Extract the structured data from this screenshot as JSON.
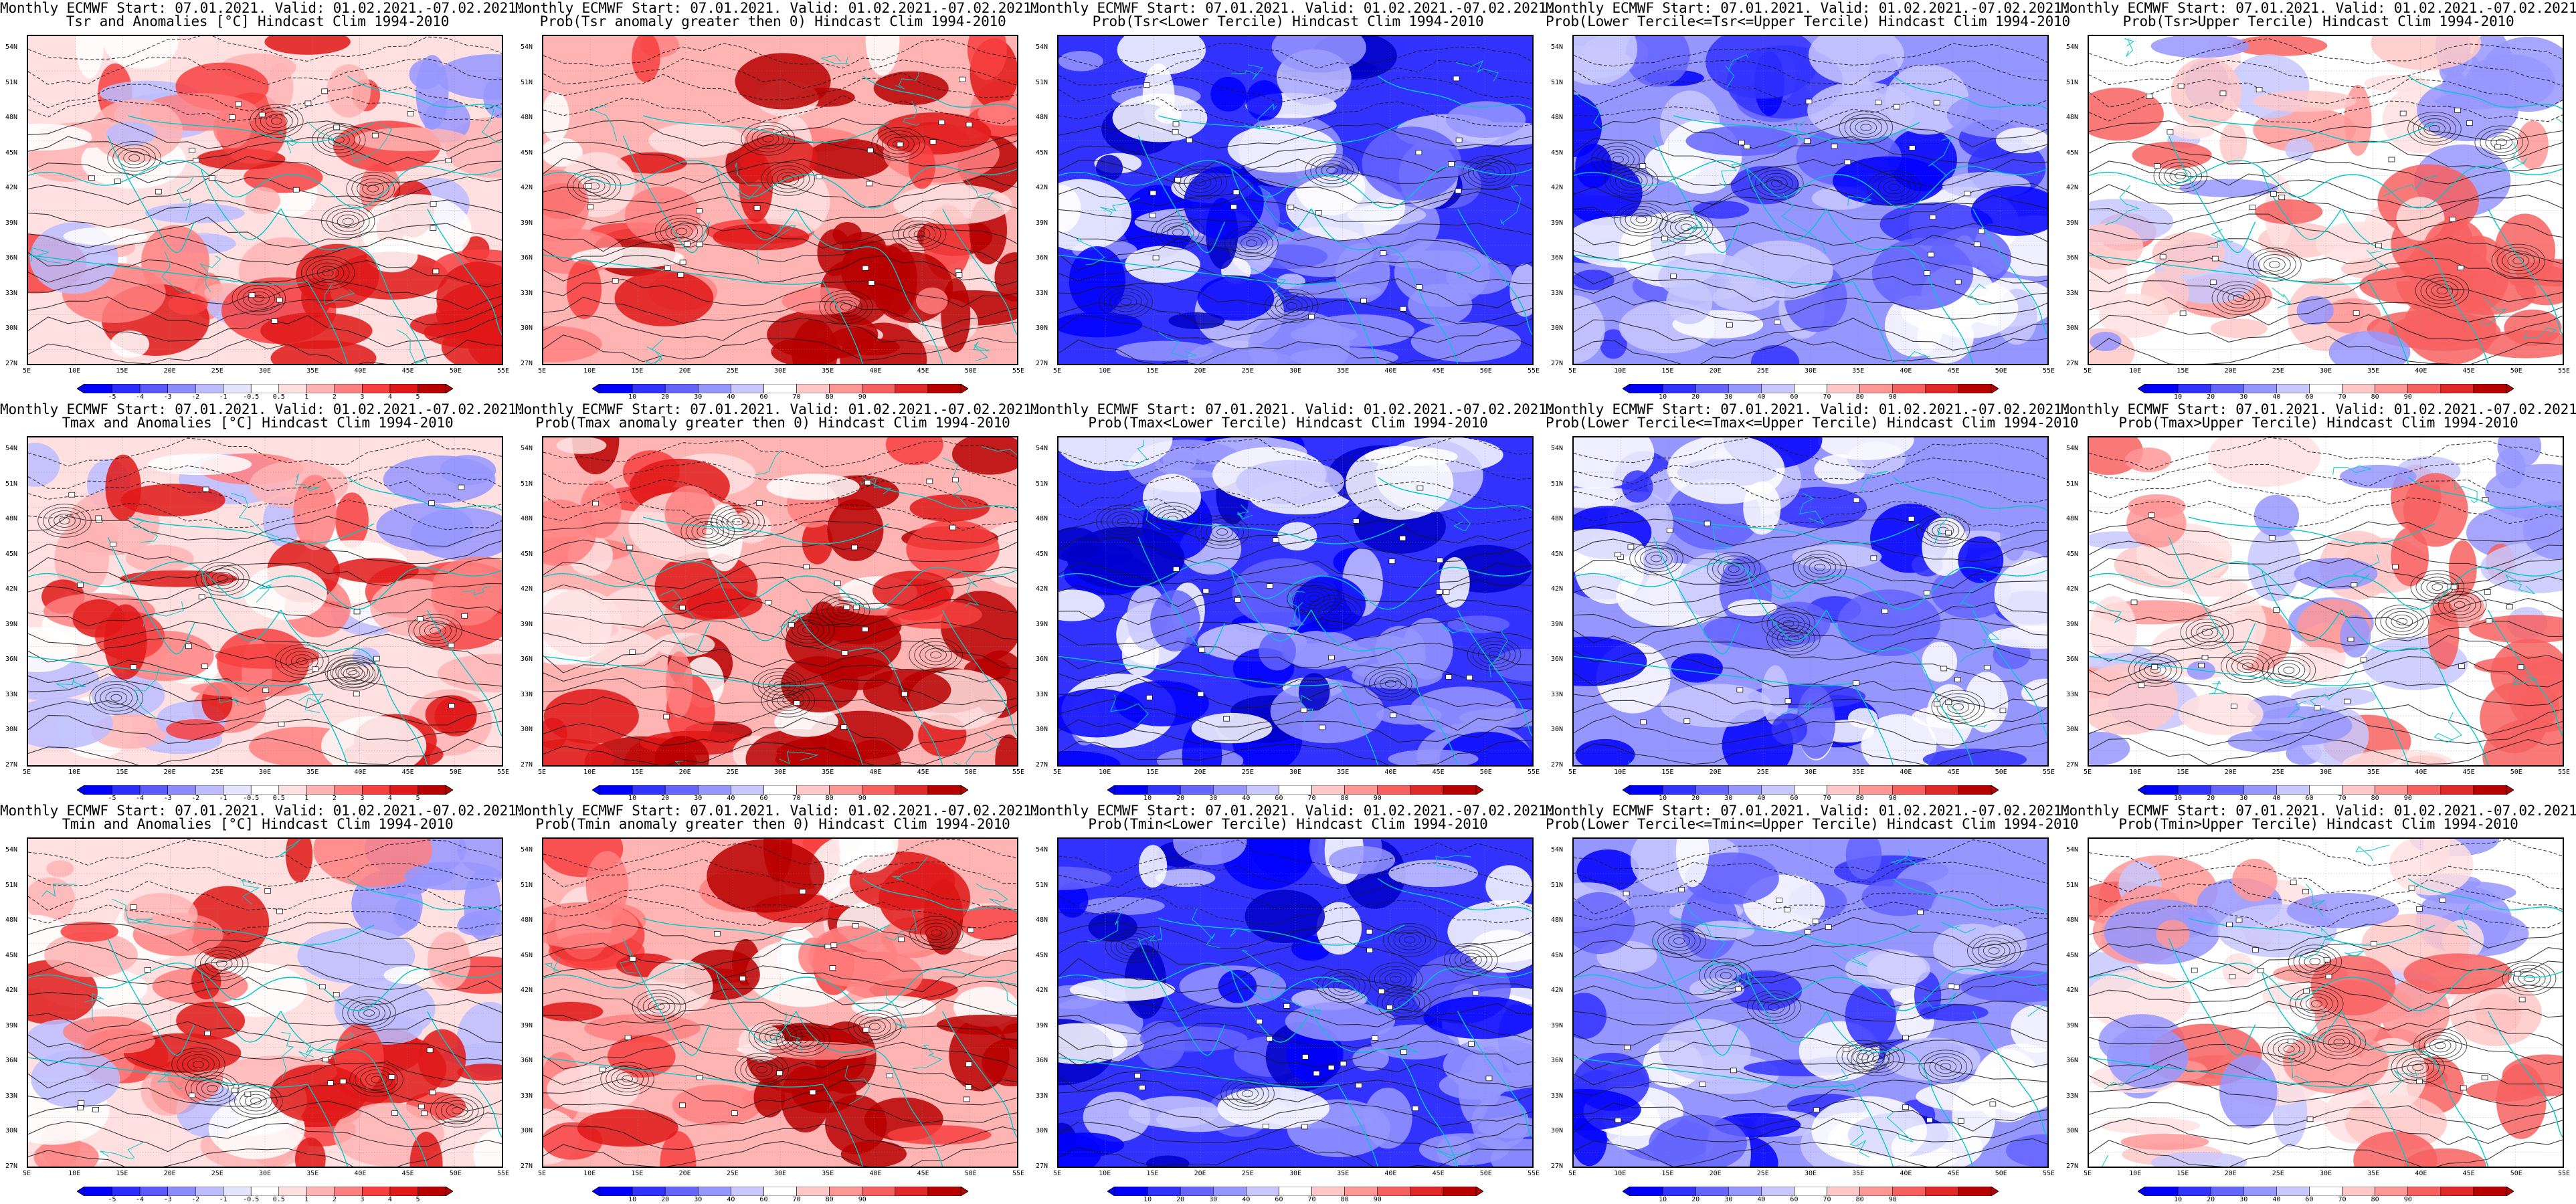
{
  "header_line": "Monthly ECMWF Start: 07.01.2021. Valid: 01.02.2021.-07.02.2021.",
  "lat_labels": [
    "54N",
    "51N",
    "48N",
    "45N",
    "42N",
    "39N",
    "36N",
    "33N",
    "30N",
    "27N"
  ],
  "lon_labels": [
    "5E",
    "10E",
    "15E",
    "20E",
    "25E",
    "30E",
    "35E",
    "40E",
    "45E",
    "50E",
    "55E"
  ],
  "colors": {
    "map_bg": "#ffffff",
    "contour": "#1a1a1a",
    "coast": "#00c8c8",
    "anom": [
      "#0000ff",
      "#2c2cff",
      "#5a5aff",
      "#8c8cff",
      "#bcbcff",
      "#e4e4ff",
      "#ffffff",
      "#ffe0e0",
      "#ffb4b4",
      "#ff8080",
      "#f84040",
      "#e01818",
      "#b80000"
    ],
    "prob": [
      "#0000ff",
      "#3232ff",
      "#6464ff",
      "#9696ff",
      "#c8c8ff",
      "#ffffff",
      "#ffc8c8",
      "#ff9696",
      "#f86060",
      "#e02828",
      "#b80000"
    ]
  },
  "colorbars": {
    "anom": {
      "labels": [
        "-5",
        "-4",
        "-3",
        "-2",
        "-1",
        "-0.5",
        "0.5",
        "1",
        "2",
        "3",
        "4",
        "5"
      ]
    },
    "prob": {
      "labels": [
        "10",
        "20",
        "30",
        "40",
        "60",
        "70",
        "80",
        "90"
      ]
    }
  },
  "panels": [
    {
      "title": "Tsr and Anomalies [°C] Hindcast Clim 1994-2010",
      "style": "anom",
      "colorbar": "anom",
      "shows_colorbar": true,
      "intensity": 0.55
    },
    {
      "title": "Prob(Tsr anomaly greater then 0) Hindcast Clim 1994-2010",
      "style": "probhigh",
      "colorbar": "prob",
      "shows_colorbar": true,
      "intensity": 0.85
    },
    {
      "title": "Prob(Tsr<Lower Tercile) Hindcast Clim 1994-2010",
      "style": "problow",
      "colorbar": "prob",
      "shows_colorbar": false,
      "intensity": 0.85
    },
    {
      "title": "Prob(Lower Tercile<=Tsr<=Upper Tercile) Hindcast Clim 1994-2010",
      "style": "probmid",
      "colorbar": "prob",
      "shows_colorbar": true,
      "intensity": 0.6
    },
    {
      "title": "Prob(Tsr>Upper Tercile) Hindcast Clim 1994-2010",
      "style": "probup",
      "colorbar": "prob",
      "shows_colorbar": true,
      "intensity": 0.5
    },
    {
      "title": "Tmax and Anomalies [°C] Hindcast Clim 1994-2010",
      "style": "anom",
      "colorbar": "anom",
      "shows_colorbar": true,
      "intensity": 0.6
    },
    {
      "title": "Prob(Tmax anomaly greater then 0) Hindcast Clim 1994-2010",
      "style": "probhigh",
      "colorbar": "prob",
      "shows_colorbar": true,
      "intensity": 0.8
    },
    {
      "title": "Prob(Tmax<Lower Tercile) Hindcast Clim 1994-2010",
      "style": "problow",
      "colorbar": "prob",
      "shows_colorbar": true,
      "intensity": 0.8
    },
    {
      "title": "Prob(Lower Tercile<=Tmax<=Upper Tercile) Hindcast Clim 1994-2010",
      "style": "probmid",
      "colorbar": "prob",
      "shows_colorbar": true,
      "intensity": 0.6
    },
    {
      "title": "Prob(Tmax>Upper Tercile) Hindcast Clim 1994-2010",
      "style": "probup",
      "colorbar": "prob",
      "shows_colorbar": true,
      "intensity": 0.5
    },
    {
      "title": "Tmin and Anomalies [°C] Hindcast Clim 1994-2010",
      "style": "anom",
      "colorbar": "anom",
      "shows_colorbar": true,
      "intensity": 0.55
    },
    {
      "title": "Prob(Tmin anomaly greater then 0) Hindcast Clim 1994-2010",
      "style": "probhigh",
      "colorbar": "prob",
      "shows_colorbar": true,
      "intensity": 0.8
    },
    {
      "title": "Prob(Tmin<Lower Tercile) Hindcast Clim 1994-2010",
      "style": "problow",
      "colorbar": "prob",
      "shows_colorbar": true,
      "intensity": 0.85
    },
    {
      "title": "Prob(Lower Tercile<=Tmin<=Upper Tercile) Hindcast Clim 1994-2010",
      "style": "probmid",
      "colorbar": "prob",
      "shows_colorbar": true,
      "intensity": 0.6
    },
    {
      "title": "Prob(Tmin>Upper Tercile) Hindcast Clim 1994-2010",
      "style": "probup",
      "colorbar": "prob",
      "shows_colorbar": true,
      "intensity": 0.5
    }
  ]
}
